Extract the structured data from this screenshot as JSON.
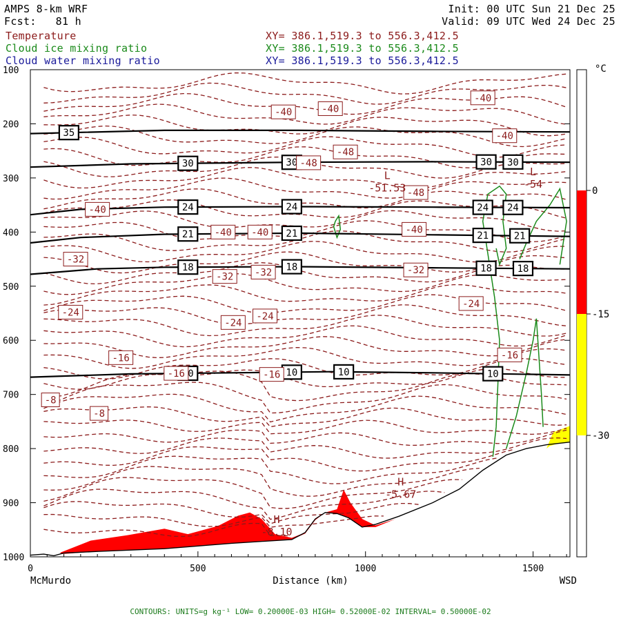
{
  "header": {
    "model": "AMPS 8-km WRF",
    "forecast": "Fcst:   81 h",
    "init": "Init: 00 UTC Sun 21 Dec 25",
    "valid": "Valid: 09 UTC Wed 24 Dec 25",
    "fields": [
      {
        "name": "Temperature",
        "xy": "XY= 386.1,519.3 to 556.3,412.5",
        "color": "#8b1a1a"
      },
      {
        "name": "Cloud ice mixing ratio",
        "xy": "XY= 386.1,519.3 to 556.3,412.5",
        "color": "#1a8a1a"
      },
      {
        "name": "Cloud water mixing ratio",
        "xy": "XY= 386.1,519.3 to 556.3,412.5",
        "color": "#1a1a9a"
      }
    ]
  },
  "footer": {
    "text": "CONTOURS: UNITS=g kg⁻¹ LOW= 0.20000E-03 HIGH= 0.52000E-02 INTERVAL= 0.50000E-02"
  },
  "colorbar": {
    "unit": "°C",
    "ticks": [
      "0",
      "-15",
      "-30"
    ],
    "segments": [
      {
        "from": 0,
        "to": -15,
        "color": "#ff0000"
      },
      {
        "from": -15,
        "to": -30,
        "color": "#ffff00"
      }
    ]
  },
  "chart_data": {
    "type": "cross-section",
    "xlabel": "Distance (km)",
    "xlim": [
      0,
      1610
    ],
    "x_ticks": [
      0,
      500,
      1000,
      1500
    ],
    "x_endpoints": {
      "left": "McMurdo",
      "right": "WSD"
    },
    "ylim": [
      1000,
      100
    ],
    "y_ticks": [
      100,
      200,
      300,
      400,
      500,
      600,
      700,
      800,
      900,
      1000
    ],
    "terrain": [
      [
        0,
        997
      ],
      [
        40,
        995
      ],
      [
        70,
        998
      ],
      [
        100,
        993
      ],
      [
        200,
        990
      ],
      [
        400,
        985
      ],
      [
        600,
        975
      ],
      [
        780,
        968
      ],
      [
        820,
        955
      ],
      [
        850,
        930
      ],
      [
        880,
        918
      ],
      [
        915,
        920
      ],
      [
        950,
        928
      ],
      [
        990,
        945
      ],
      [
        1030,
        940
      ],
      [
        1100,
        925
      ],
      [
        1200,
        900
      ],
      [
        1280,
        875
      ],
      [
        1350,
        840
      ],
      [
        1420,
        812
      ],
      [
        1480,
        800
      ],
      [
        1540,
        793
      ],
      [
        1610,
        788
      ]
    ],
    "black_contours": [
      {
        "label": "35",
        "points": [
          [
            0,
            218
          ],
          [
            400,
            212
          ],
          [
            800,
            212
          ],
          [
            1200,
            214
          ],
          [
            1610,
            215
          ]
        ],
        "label_x": [
          115
        ]
      },
      {
        "label": "30",
        "points": [
          [
            0,
            280
          ],
          [
            300,
            274
          ],
          [
            800,
            271
          ],
          [
            1200,
            270
          ],
          [
            1610,
            271
          ]
        ],
        "label_x": [
          470,
          780,
          1360,
          1440
        ]
      },
      {
        "label": "24",
        "points": [
          [
            0,
            368
          ],
          [
            150,
            358
          ],
          [
            400,
            354
          ],
          [
            800,
            353
          ],
          [
            1200,
            354
          ],
          [
            1610,
            355
          ]
        ],
        "label_x": [
          470,
          780,
          1350,
          1440
        ]
      },
      {
        "label": "21",
        "points": [
          [
            0,
            420
          ],
          [
            150,
            410
          ],
          [
            400,
            404
          ],
          [
            800,
            402
          ],
          [
            1200,
            405
          ],
          [
            1610,
            408
          ]
        ],
        "label_x": [
          470,
          780,
          1350,
          1460
        ]
      },
      {
        "label": "18",
        "points": [
          [
            0,
            478
          ],
          [
            200,
            468
          ],
          [
            400,
            465
          ],
          [
            800,
            464
          ],
          [
            1200,
            466
          ],
          [
            1610,
            468
          ]
        ],
        "label_x": [
          470,
          780,
          1360,
          1470
        ]
      },
      {
        "label": "10",
        "points": [
          [
            0,
            668
          ],
          [
            300,
            662
          ],
          [
            600,
            660
          ],
          [
            900,
            658
          ],
          [
            1200,
            660
          ],
          [
            1610,
            664
          ]
        ],
        "label_x": [
          470,
          780,
          935,
          1380
        ]
      }
    ],
    "temperature_labels": [
      {
        "text": "-40",
        "x": 1350,
        "p": 152
      },
      {
        "text": "-40",
        "x": 755,
        "p": 178
      },
      {
        "text": "-40",
        "x": 895,
        "p": 172
      },
      {
        "text": "-48",
        "x": 940,
        "p": 252
      },
      {
        "text": "-48",
        "x": 830,
        "p": 272
      },
      {
        "text": "-48",
        "x": 1150,
        "p": 327
      },
      {
        "text": "-40",
        "x": 1415,
        "p": 222
      },
      {
        "text": "-40",
        "x": 200,
        "p": 358
      },
      {
        "text": "-40",
        "x": 575,
        "p": 400
      },
      {
        "text": "-40",
        "x": 685,
        "p": 400
      },
      {
        "text": "-40",
        "x": 1145,
        "p": 395
      },
      {
        "text": "-32",
        "x": 135,
        "p": 450
      },
      {
        "text": "-32",
        "x": 580,
        "p": 482
      },
      {
        "text": "-32",
        "x": 695,
        "p": 474
      },
      {
        "text": "-32",
        "x": 1150,
        "p": 470
      },
      {
        "text": "-24",
        "x": 120,
        "p": 548
      },
      {
        "text": "-24",
        "x": 605,
        "p": 567
      },
      {
        "text": "-24",
        "x": 700,
        "p": 555
      },
      {
        "text": "-24",
        "x": 1315,
        "p": 532
      },
      {
        "text": "-16",
        "x": 270,
        "p": 632
      },
      {
        "text": "-16",
        "x": 435,
        "p": 661
      },
      {
        "text": "-16",
        "x": 720,
        "p": 663
      },
      {
        "text": "-16",
        "x": 1430,
        "p": 627
      },
      {
        "text": "-8",
        "x": 60,
        "p": 710
      },
      {
        "text": "-8",
        "x": 205,
        "p": 735
      }
    ],
    "extrema": [
      {
        "letter": "L",
        "value": "-51.53",
        "x": 1065,
        "p": 312
      },
      {
        "letter": "L",
        "value": "-54",
        "x": 1500,
        "p": 305
      },
      {
        "letter": "H",
        "value": "-5.67",
        "x": 1105,
        "p": 878
      },
      {
        "letter": "H",
        "value": "-8.10",
        "x": 735,
        "p": 948
      }
    ]
  }
}
